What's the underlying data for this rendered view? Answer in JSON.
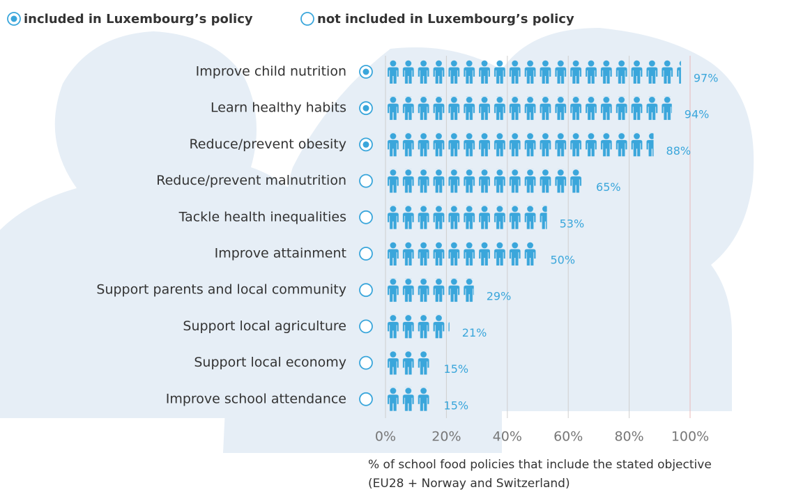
{
  "chart_data": {
    "type": "pictogram-bar",
    "legend": [
      "included in Luxembourg’s policy",
      "not included in Luxembourg’s policy"
    ],
    "categories": [
      "Improve child nutrition",
      "Learn healthy habits",
      "Reduce/prevent obesity",
      "Reduce/prevent malnutrition",
      "Tackle health inequalities",
      "Improve attainment",
      "Support parents and local community",
      "Support local agriculture",
      "Support local economy",
      "Improve school attendance"
    ],
    "values": [
      97,
      94,
      88,
      65,
      53,
      50,
      29,
      21,
      15,
      15
    ],
    "value_labels": [
      "97%",
      "94%",
      "88%",
      "65%",
      "53%",
      "50%",
      "29%",
      "21%",
      "15%",
      "15%"
    ],
    "included": [
      true,
      true,
      true,
      false,
      false,
      false,
      false,
      false,
      false,
      false
    ],
    "color": "#3aa6db",
    "xlim": [
      0,
      100
    ],
    "xticks": [
      {
        "value": 0,
        "label": "0%"
      },
      {
        "value": 20,
        "label": "20%"
      },
      {
        "value": 40,
        "label": "40%"
      },
      {
        "value": 60,
        "label": "60%"
      },
      {
        "value": 80,
        "label": "80%"
      },
      {
        "value": 100,
        "label": "100%"
      }
    ],
    "grid": true,
    "xlabel": [
      "% of school food policies that include the stated objective",
      "(EU28 + Norway and Switzerland)"
    ]
  }
}
